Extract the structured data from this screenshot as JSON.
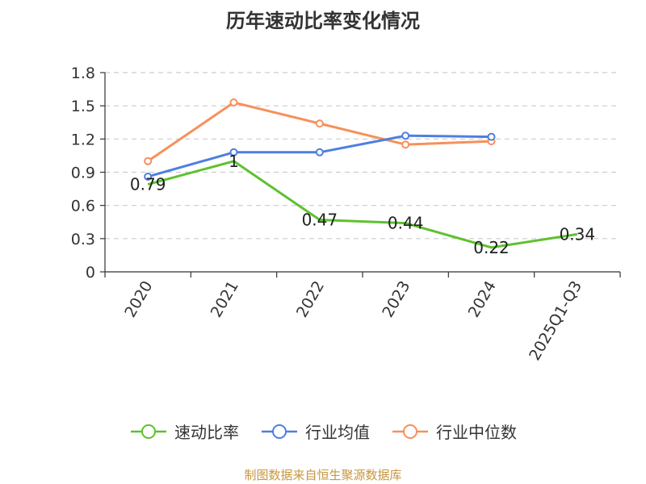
{
  "title": "历年速动比率变化情况",
  "source": "制图数据来自恒生聚源数据库",
  "chart_data": {
    "type": "line",
    "categories": [
      "2020",
      "2021",
      "2022",
      "2023",
      "2024",
      "2025Q1-Q3"
    ],
    "ylim": [
      0,
      1.8
    ],
    "yticks": [
      "0",
      "0.3",
      "0.6",
      "0.9",
      "1.2",
      "1.5",
      "1.8"
    ],
    "grid": true,
    "legend_position": "bottom",
    "series": [
      {
        "name": "速动比率",
        "color": "#5ec12f",
        "values": [
          0.79,
          1.0,
          0.47,
          0.44,
          0.22,
          0.34
        ],
        "labels": [
          "0.79",
          "1",
          "0.47",
          "0.44",
          "0.22",
          "0.34"
        ]
      },
      {
        "name": "行业均值",
        "color": "#4e7fe0",
        "values": [
          0.86,
          1.08,
          1.08,
          1.23,
          1.22,
          null
        ]
      },
      {
        "name": "行业中位数",
        "color": "#f7905a",
        "values": [
          1.0,
          1.53,
          1.34,
          1.15,
          1.18,
          null
        ]
      }
    ]
  }
}
